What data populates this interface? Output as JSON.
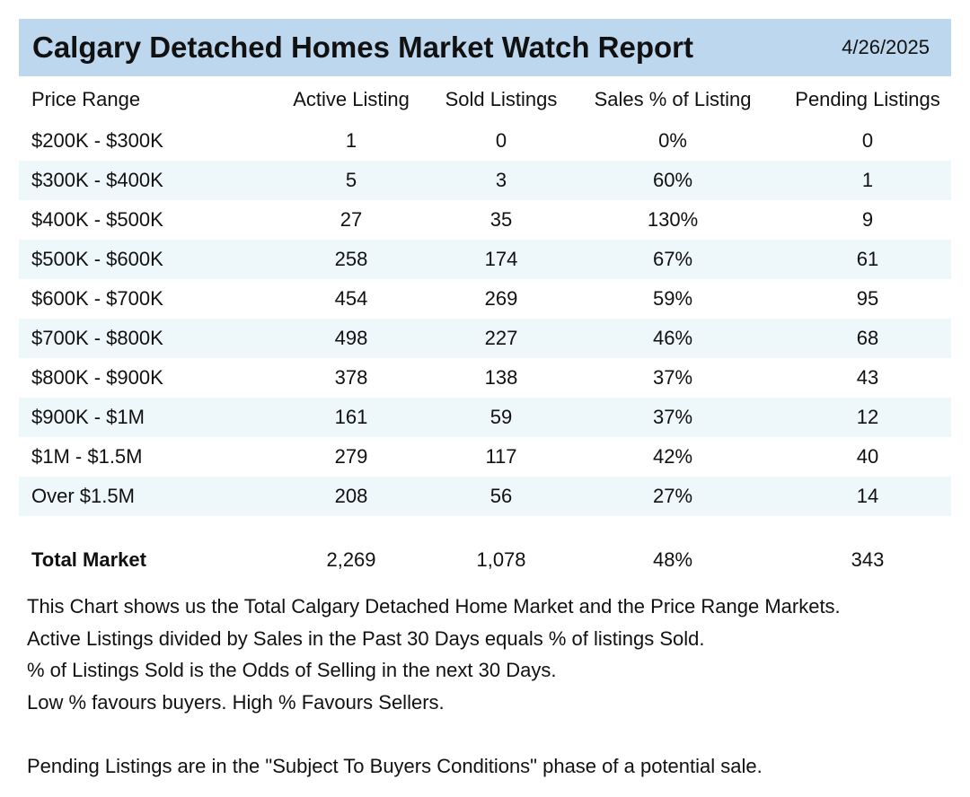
{
  "header": {
    "title": "Calgary Detached Homes Market Watch Report",
    "date": "4/26/2025",
    "background_color": "#bdd7ee"
  },
  "table": {
    "columns": [
      "Price Range",
      "Active Listing",
      "Sold Listings",
      "Sales % of Listing",
      "Pending Listings"
    ],
    "stripe_color": "#eef7f9",
    "rows": [
      {
        "range": "$200K - $300K",
        "active": "1",
        "sold": "0",
        "pct": "0%",
        "pending": "0"
      },
      {
        "range": "$300K - $400K",
        "active": "5",
        "sold": "3",
        "pct": "60%",
        "pending": "1"
      },
      {
        "range": "$400K - $500K",
        "active": "27",
        "sold": "35",
        "pct": "130%",
        "pending": "9"
      },
      {
        "range": "$500K - $600K",
        "active": "258",
        "sold": "174",
        "pct": "67%",
        "pending": "61"
      },
      {
        "range": "$600K - $700K",
        "active": "454",
        "sold": "269",
        "pct": "59%",
        "pending": "95"
      },
      {
        "range": "$700K - $800K",
        "active": "498",
        "sold": "227",
        "pct": "46%",
        "pending": "68"
      },
      {
        "range": "$800K - $900K",
        "active": "378",
        "sold": "138",
        "pct": "37%",
        "pending": "43"
      },
      {
        "range": "$900K - $1M",
        "active": "161",
        "sold": "59",
        "pct": "37%",
        "pending": "12"
      },
      {
        "range": "$1M - $1.5M",
        "active": "279",
        "sold": "117",
        "pct": "42%",
        "pending": "40"
      },
      {
        "range": "Over $1.5M",
        "active": "208",
        "sold": "56",
        "pct": "27%",
        "pending": "14"
      }
    ],
    "total": {
      "range": "Total Market",
      "active": "2,269",
      "sold": "1,078",
      "pct": "48%",
      "pending": "343"
    }
  },
  "notes": {
    "lines": [
      "This Chart shows us the Total Calgary Detached Home Market and the Price Range Markets.",
      "Active Listings divided by Sales in the Past 30 Days equals % of listings Sold.",
      "% of Listings Sold is the Odds of Selling in the next 30 Days.",
      "Low % favours buyers. High % Favours Sellers."
    ],
    "footer": "Pending Listings are in the \"Subject To Buyers Conditions\" phase of a potential sale."
  }
}
